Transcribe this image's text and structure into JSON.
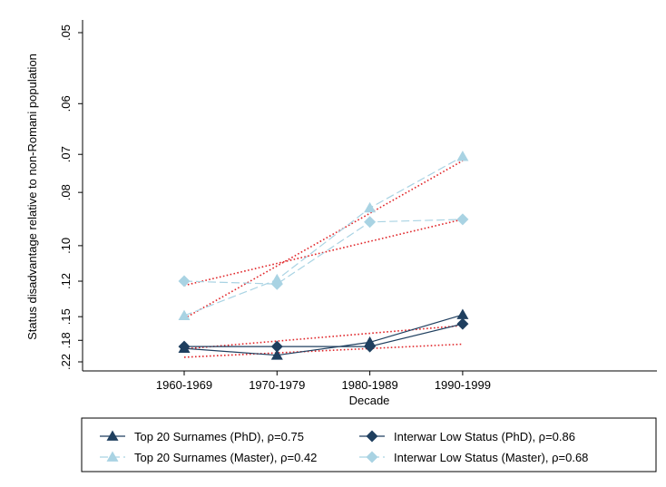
{
  "chart_data": {
    "type": "line",
    "xlabel": "Decade",
    "ylabel": "Status disadvantage relative to non-Romani population",
    "categories": [
      "1960-1969",
      "1970-1979",
      "1980-1989",
      "1990-1999"
    ],
    "y_scale": "reciprocal",
    "y_direction": "reversed",
    "y_ticks": [
      0.05,
      0.06,
      0.07,
      0.08,
      0.1,
      0.12,
      0.15,
      0.18,
      0.22
    ],
    "y_tick_labels": [
      ".05",
      ".06",
      ".07",
      ".08",
      ".10",
      ".12",
      ".15",
      ".18",
      ".22"
    ],
    "ylim": [
      0.22,
      0.05
    ],
    "grid": false,
    "legend_position": "bottom",
    "series": [
      {
        "name": "Top 20 Surnames (PhD), ρ=0.75",
        "marker": "triangle",
        "line": "solid",
        "color": "#1f3f5f",
        "values": [
          0.193,
          0.206,
          0.183,
          0.148
        ]
      },
      {
        "name": "Interwar Low Status (PhD), ρ=0.86",
        "marker": "diamond",
        "line": "solid",
        "color": "#1f3f5f",
        "values": [
          0.19,
          0.19,
          0.19,
          0.158
        ]
      },
      {
        "name": "Top 20 Surnames (Master), ρ=0.42",
        "marker": "triangle",
        "line": "dashed",
        "color": "#a9d3e3",
        "values": [
          0.149,
          0.119,
          0.085,
          0.0705
        ]
      },
      {
        "name": "Interwar Low Status (Master), ρ=0.68",
        "marker": "diamond",
        "line": "dashed",
        "color": "#a9d3e3",
        "values": [
          0.12,
          0.122,
          0.09,
          0.089
        ]
      }
    ],
    "fit_lines": [
      {
        "color": "#e0262a",
        "style": "dotted",
        "values": [
          0.21,
          0.186
        ]
      },
      {
        "color": "#e0262a",
        "style": "dotted",
        "values": [
          0.194,
          0.16
        ]
      },
      {
        "color": "#e0262a",
        "style": "dotted",
        "values": [
          0.152,
          0.0715
        ]
      },
      {
        "color": "#e0262a",
        "style": "dotted",
        "values": [
          0.123,
          0.089
        ]
      }
    ]
  }
}
